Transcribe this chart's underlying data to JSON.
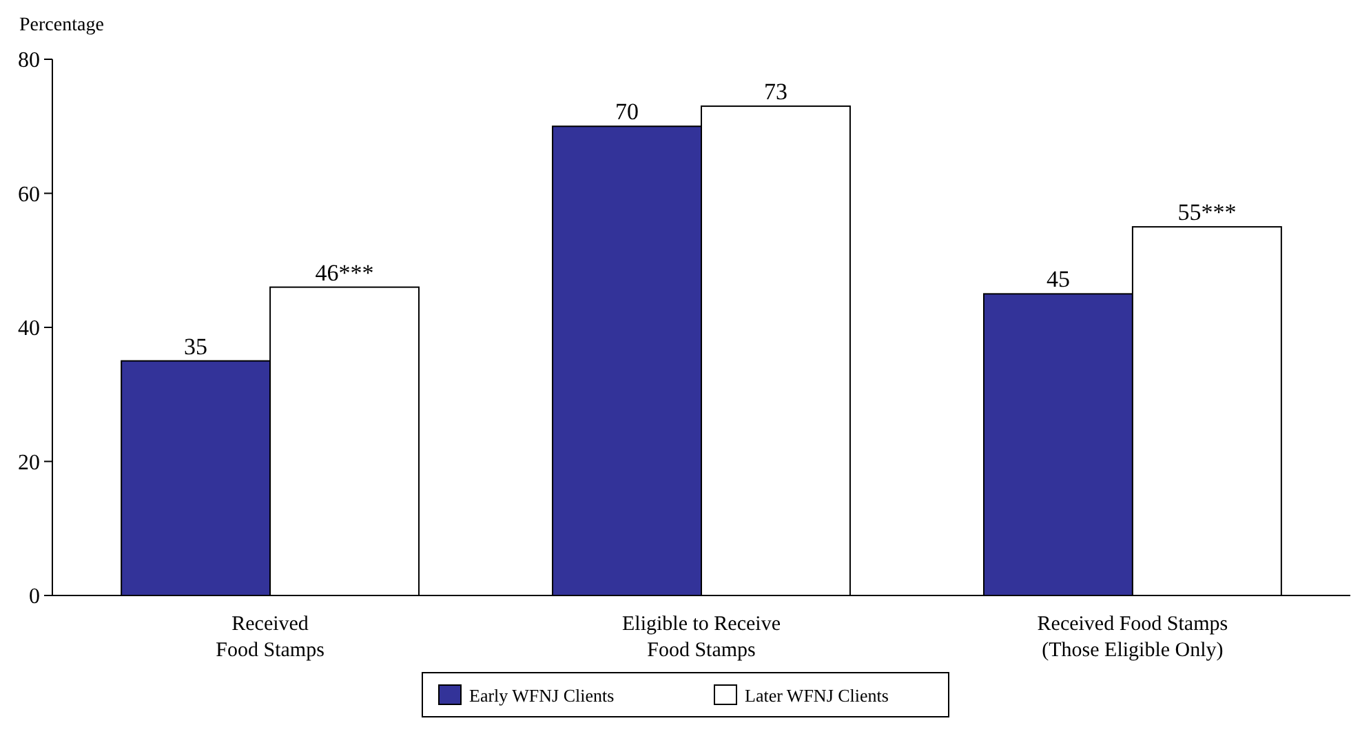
{
  "chart_data": {
    "type": "bar",
    "ylabel": "Percentage",
    "categories": [
      "Received\nFood Stamps",
      "Eligible to Receive\nFood Stamps",
      "Received Food Stamps\n(Those Eligible Only)"
    ],
    "series": [
      {
        "name": "Early WFNJ Clients",
        "color": "#333399",
        "values": [
          35,
          70,
          45
        ],
        "value_labels": [
          "35",
          "70",
          "45"
        ]
      },
      {
        "name": "Later WFNJ Clients",
        "color": "#ffffff",
        "values": [
          46,
          73,
          55
        ],
        "value_labels": [
          "46***",
          "73",
          "55***"
        ]
      }
    ],
    "ylim": [
      0,
      80
    ],
    "yticks": [
      0,
      20,
      40,
      60,
      80
    ],
    "grid": false,
    "legend": "bottom"
  }
}
